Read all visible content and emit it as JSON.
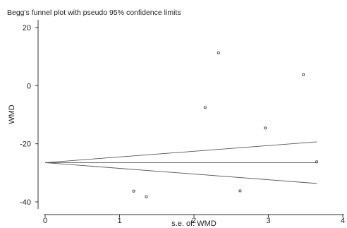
{
  "chart_data": {
    "type": "scatter",
    "title": "Begg's funnel plot with pseudo 95% confidence limits",
    "xlabel": "s.e. of: WMD",
    "ylabel": "WMD",
    "xlim": [
      0,
      4
    ],
    "ylim": [
      -40,
      20
    ],
    "x_ticks": [
      "0",
      "1",
      "2",
      "3",
      "4"
    ],
    "y_ticks": [
      "-40",
      "-20",
      "0",
      "20"
    ],
    "grid": false,
    "pooled_estimate": -26.5,
    "pseudo_ci_x_end": 3.65,
    "points": [
      {
        "x": 1.19,
        "y": -36.3
      },
      {
        "x": 1.36,
        "y": -38.2
      },
      {
        "x": 2.15,
        "y": -7.5
      },
      {
        "x": 2.33,
        "y": 11.3
      },
      {
        "x": 2.62,
        "y": -36.2
      },
      {
        "x": 2.96,
        "y": -14.6
      },
      {
        "x": 3.47,
        "y": 3.8
      },
      {
        "x": 3.65,
        "y": -26.2
      }
    ]
  }
}
